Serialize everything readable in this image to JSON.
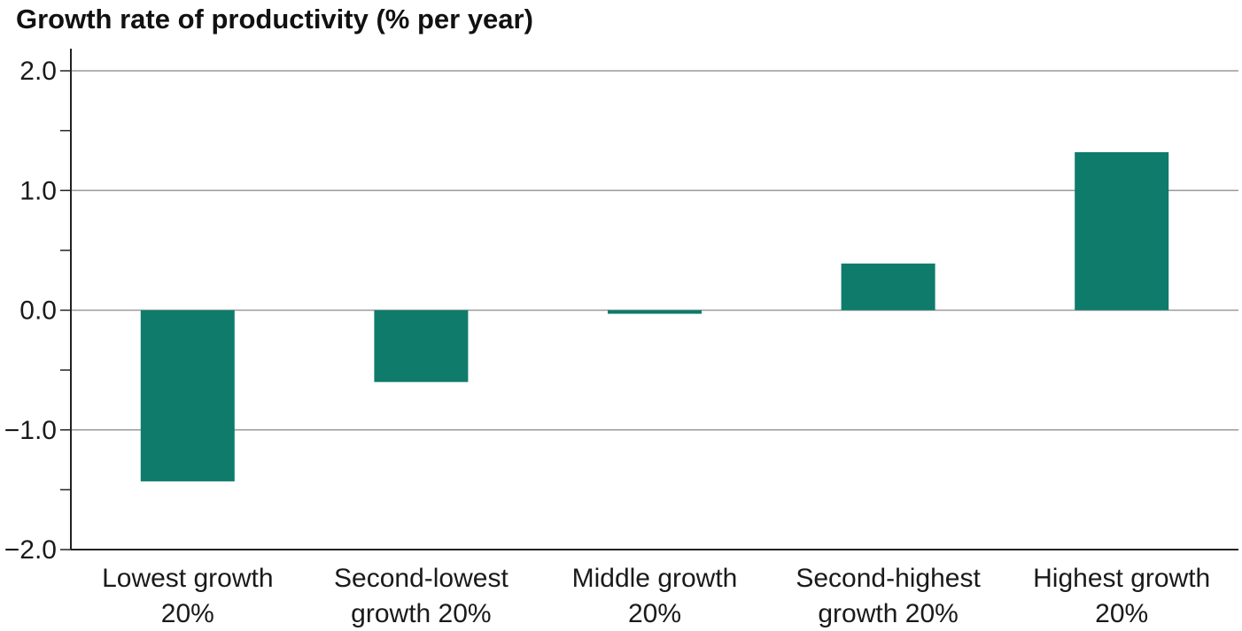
{
  "chart_data": {
    "type": "bar",
    "title": "Growth rate of productivity (% per year)",
    "categories": [
      [
        "Lowest growth",
        "20%"
      ],
      [
        "Second-lowest",
        "growth 20%"
      ],
      [
        "Middle growth",
        "20%"
      ],
      [
        "Second-highest",
        "growth 20%"
      ],
      [
        "Highest growth",
        "20%"
      ]
    ],
    "values": [
      -1.43,
      -0.6,
      -0.03,
      0.39,
      1.32
    ],
    "ylim": [
      -2.0,
      2.0
    ],
    "y_ticks": [
      2.0,
      1.0,
      0.0,
      -1.0,
      -2.0
    ],
    "y_tick_labels": [
      "2.0",
      "1.0",
      "0.0",
      "−1.0",
      "−2.0"
    ],
    "grid": true,
    "bar_color": "#0e7b6b",
    "grid_color": "#9a9a9a"
  }
}
